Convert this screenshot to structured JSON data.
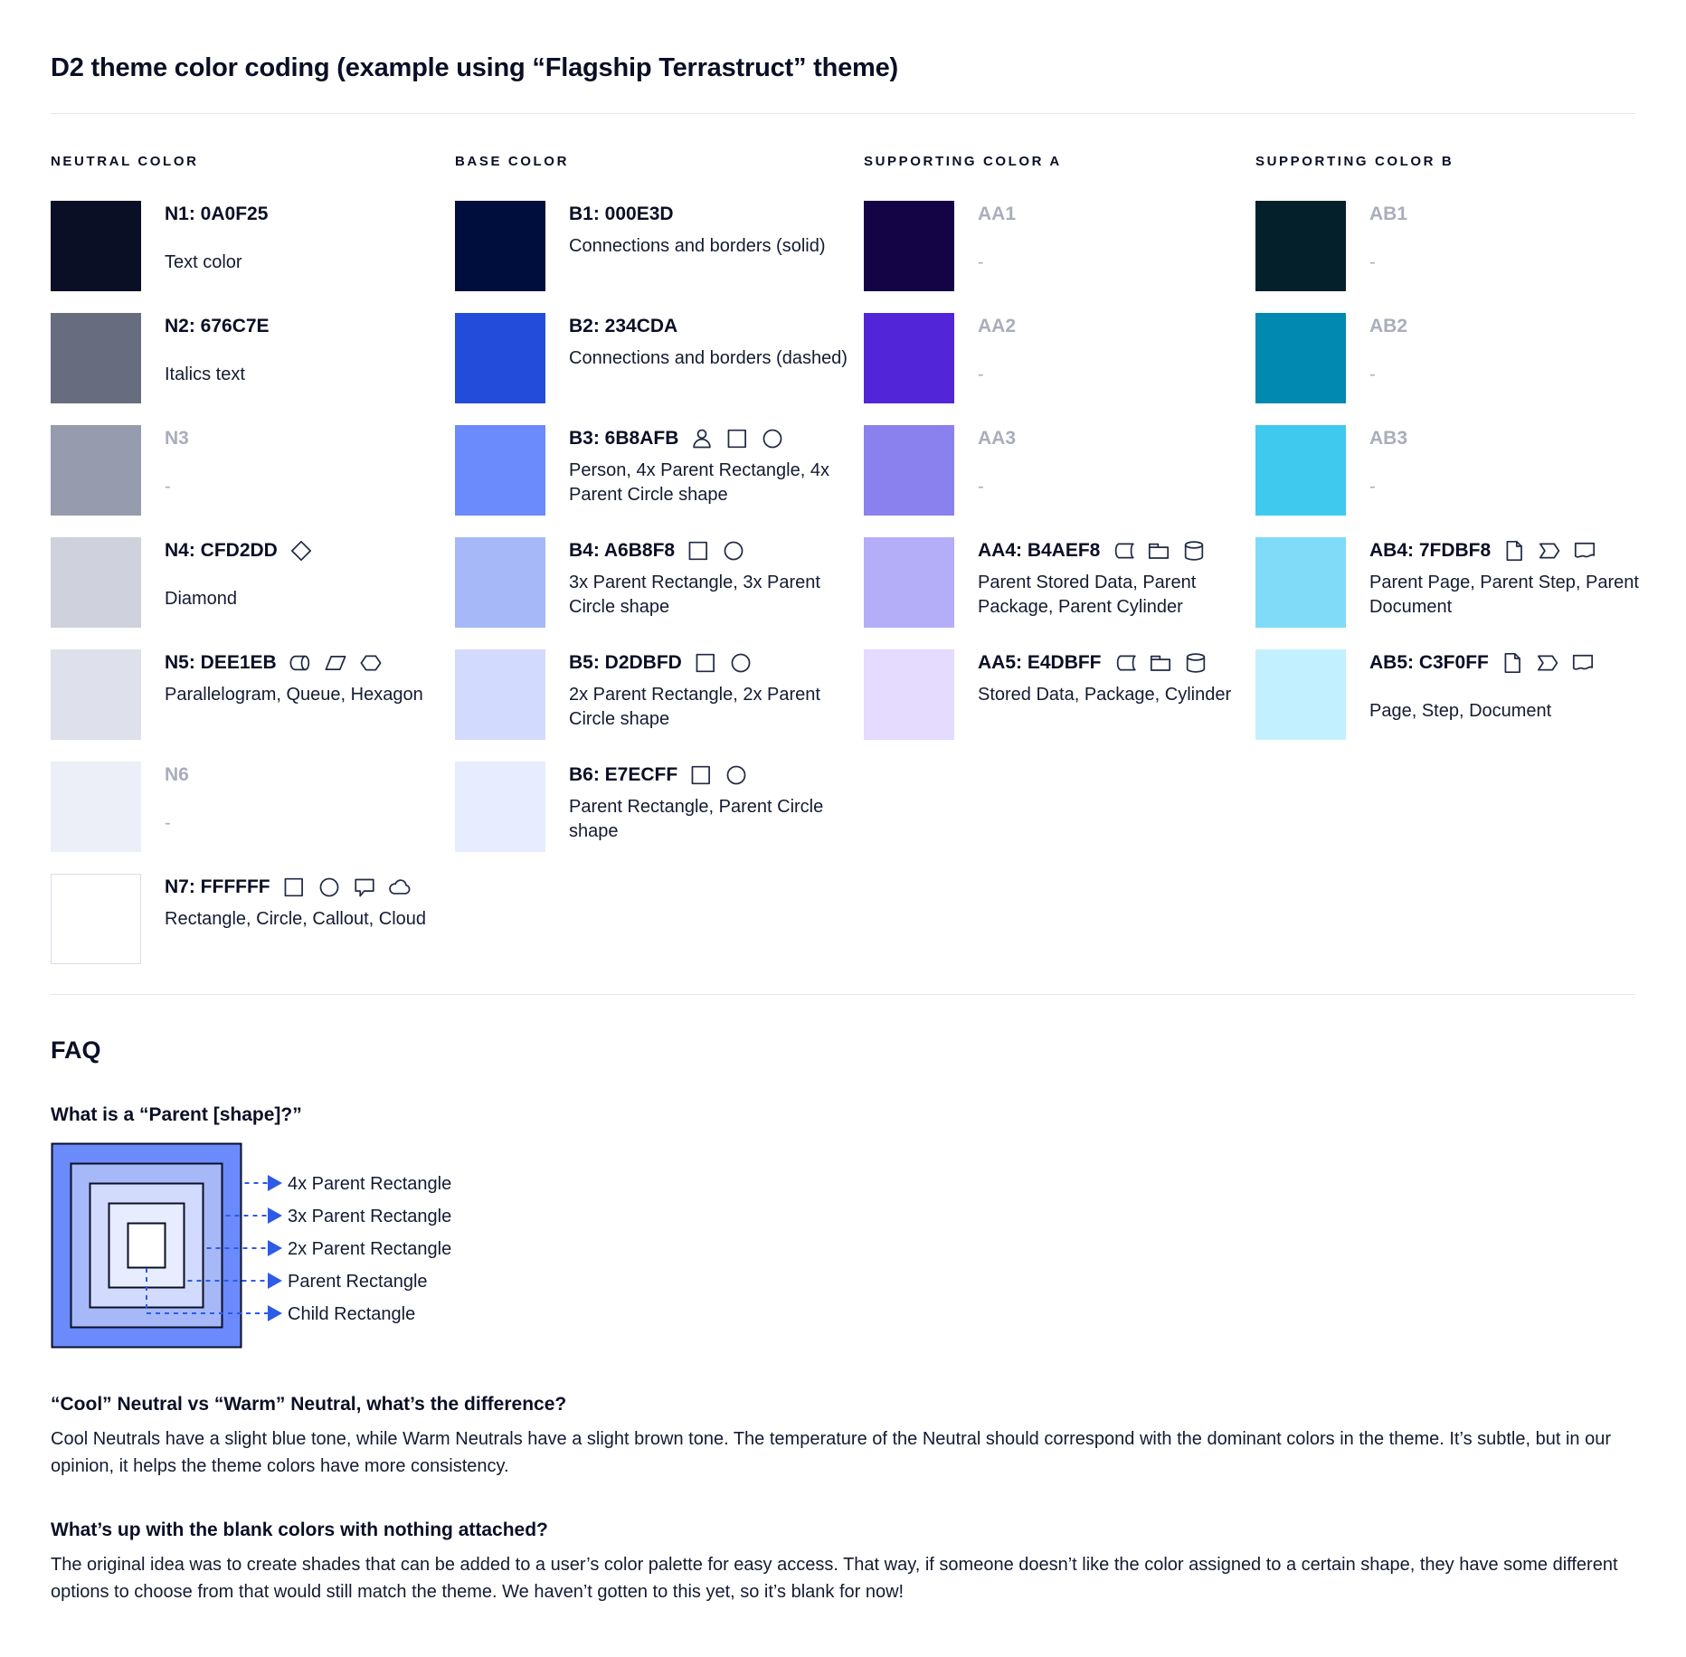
{
  "page": {
    "title": "D2 theme color coding (example using “Flagship Terrastruct” theme)"
  },
  "colors": {
    "text_primary": "#0A0F25",
    "text_muted": "#A9AEBB",
    "divider": "#E3E6EE",
    "arrow_blue": "#2D5BE7",
    "icon_stroke": "#222A44"
  },
  "palette": {
    "columns": [
      {
        "header": "NEUTRAL COLOR",
        "swatches": [
          {
            "label": "N1: 0A0F25",
            "color": "#0A0F25",
            "desc": "Text color",
            "icons": [],
            "muted": false,
            "bordered": false
          },
          {
            "label": "N2: 676C7E",
            "color": "#676C7E",
            "desc": "Italics text",
            "icons": [],
            "muted": false,
            "bordered": false
          },
          {
            "label": "N3",
            "color": "#969CAD",
            "desc": "-",
            "icons": [],
            "muted": true,
            "bordered": false
          },
          {
            "label": "N4: CFD2DD",
            "color": "#CFD2DD",
            "desc": "Diamond",
            "icons": [
              "diamond"
            ],
            "muted": false,
            "bordered": false
          },
          {
            "label": "N5: DEE1EB",
            "color": "#DEE1EB",
            "desc": "Parallelogram, Queue, Hexagon",
            "icons": [
              "queue",
              "parallelogram",
              "hexagon"
            ],
            "muted": false,
            "bordered": false
          },
          {
            "label": "N6",
            "color": "#ECEFF7",
            "desc": "-",
            "icons": [],
            "muted": true,
            "bordered": false
          },
          {
            "label": "N7: FFFFFF",
            "color": "#FFFFFF",
            "desc": "Rectangle, Circle, Callout, Cloud",
            "icons": [
              "rectangle",
              "circle",
              "callout",
              "cloud"
            ],
            "muted": false,
            "bordered": true
          }
        ]
      },
      {
        "header": "BASE COLOR",
        "swatches": [
          {
            "label": "B1: 000E3D",
            "color": "#000E3D",
            "desc": "Connections and borders (solid)",
            "icons": [],
            "muted": false,
            "bordered": false
          },
          {
            "label": "B2: 234CDA",
            "color": "#234CDA",
            "desc": "Connections and borders (dashed)",
            "icons": [],
            "muted": false,
            "bordered": false
          },
          {
            "label": "B3: 6B8AFB",
            "color": "#6B8AFB",
            "desc": "Person, 4x Parent Rectangle, 4x Parent Circle shape",
            "icons": [
              "person",
              "rectangle",
              "circle"
            ],
            "muted": false,
            "bordered": false
          },
          {
            "label": "B4: A6B8F8",
            "color": "#A6B8F8",
            "desc": "3x Parent Rectangle, 3x Parent Circle shape",
            "icons": [
              "rectangle",
              "circle"
            ],
            "muted": false,
            "bordered": false
          },
          {
            "label": "B5: D2DBFD",
            "color": "#D2DBFD",
            "desc": "2x Parent Rectangle, 2x Parent Circle shape",
            "icons": [
              "rectangle",
              "circle"
            ],
            "muted": false,
            "bordered": false
          },
          {
            "label": "B6: E7ECFF",
            "color": "#E7ECFF",
            "desc": "Parent Rectangle, Parent Circle shape",
            "icons": [
              "rectangle",
              "circle"
            ],
            "muted": false,
            "bordered": false
          }
        ]
      },
      {
        "header": "SUPPORTING COLOR A",
        "swatches": [
          {
            "label": "AA1",
            "color": "#140345",
            "desc": "-",
            "icons": [],
            "muted": true,
            "bordered": false
          },
          {
            "label": "AA2",
            "color": "#5325D9",
            "desc": "-",
            "icons": [],
            "muted": true,
            "bordered": false
          },
          {
            "label": "AA3",
            "color": "#8A81EF",
            "desc": "-",
            "icons": [],
            "muted": true,
            "bordered": false
          },
          {
            "label": "AA4: B4AEF8",
            "color": "#B4AEF8",
            "desc": "Parent Stored Data, Parent Package,  Parent Cylinder",
            "icons": [
              "stored-data",
              "package",
              "cylinder"
            ],
            "muted": false,
            "bordered": false
          },
          {
            "label": "AA5: E4DBFF",
            "color": "#E4DBFF",
            "desc": "Stored Data, Package, Cylinder",
            "icons": [
              "stored-data",
              "package",
              "cylinder"
            ],
            "muted": false,
            "bordered": false
          }
        ]
      },
      {
        "header": "SUPPORTING COLOR B",
        "swatches": [
          {
            "label": "AB1",
            "color": "#03202B",
            "desc": "-",
            "icons": [],
            "muted": true,
            "bordered": false
          },
          {
            "label": "AB2",
            "color": "#0289B1",
            "desc": "-",
            "icons": [],
            "muted": true,
            "bordered": false
          },
          {
            "label": "AB3",
            "color": "#40C9EE",
            "desc": "-",
            "icons": [],
            "muted": true,
            "bordered": false
          },
          {
            "label": "AB4: 7FDBF8",
            "color": "#7FDBF8",
            "desc": "Parent Page, Parent Step, Parent Document",
            "icons": [
              "page",
              "step",
              "document"
            ],
            "muted": false,
            "bordered": false
          },
          {
            "label": "AB5: C3F0FF",
            "color": "#C3F0FF",
            "desc": "Page, Step, Document",
            "icons": [
              "page",
              "step",
              "document"
            ],
            "muted": false,
            "bordered": false
          }
        ]
      }
    ]
  },
  "faq": {
    "title": "FAQ",
    "q1": "What is a “Parent [shape]?”",
    "diagram": {
      "layers": [
        {
          "label": "4x Parent Rectangle",
          "color": "#6B8AFB"
        },
        {
          "label": "3x Parent Rectangle",
          "color": "#A6B8F8"
        },
        {
          "label": "2x Parent Rectangle",
          "color": "#D2DBFD"
        },
        {
          "label": "Parent Rectangle",
          "color": "#E7ECFF"
        },
        {
          "label": "Child Rectangle",
          "color": "#FFFFFF"
        }
      ]
    },
    "q2": "“Cool” Neutral vs “Warm” Neutral, what’s the difference?",
    "a2": "Cool Neutrals have a slight blue tone, while Warm Neutrals have a slight brown tone. The temperature of the Neutral should correspond with the dominant colors in the theme. It’s subtle, but in our opinion, it helps the theme colors have more consistency.",
    "q3": "What’s up with the blank colors with nothing attached?",
    "a3": "The original idea was to create shades that can be added to a user’s color palette for easy access. That way, if someone doesn’t like the color assigned to a certain shape, they have some different options to choose from that would still match the theme. We haven’t gotten to this yet, so it’s blank for now!"
  }
}
